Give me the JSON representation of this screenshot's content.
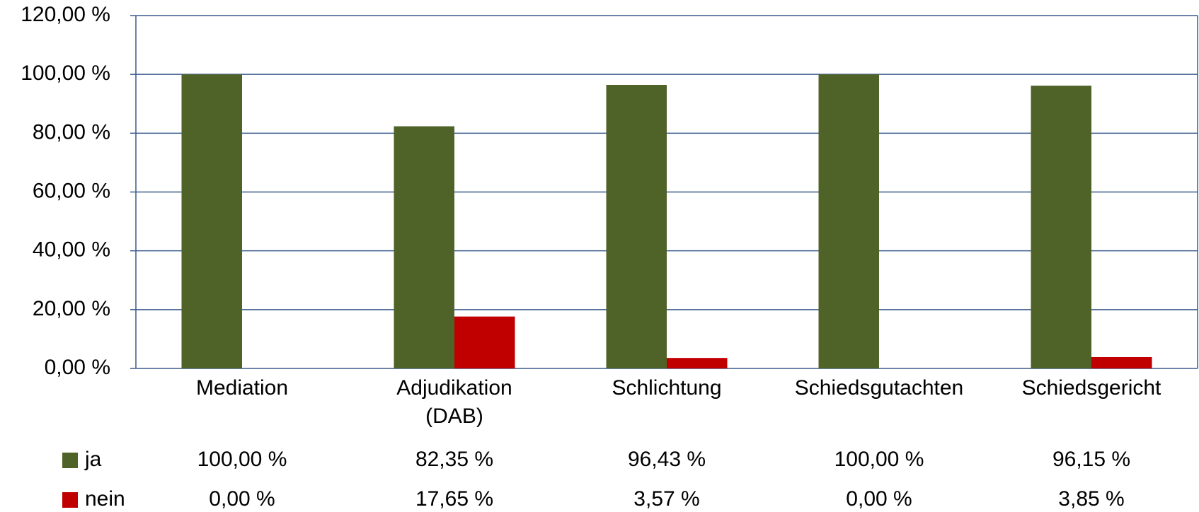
{
  "chart_data": {
    "type": "bar",
    "categories": [
      "Mediation",
      "Adjudikation\n(DAB)",
      "Schlichtung",
      "Schiedsgutachten",
      "Schiedsgericht"
    ],
    "series": [
      {
        "name": "ja",
        "color": "#4f6228",
        "values": [
          100,
          82.35,
          96.43,
          100,
          96.15
        ],
        "value_labels": [
          "100,00 %",
          "82,35 %",
          "96,43 %",
          "100,00 %",
          "96,15 %"
        ]
      },
      {
        "name": "nein",
        "color": "#c00000",
        "values": [
          0,
          17.65,
          3.57,
          0,
          3.85
        ],
        "value_labels": [
          "0,00 %",
          "17,65 %",
          "3,57 %",
          "0,00 %",
          "3,85 %"
        ]
      }
    ],
    "ylim": [
      0,
      120
    ],
    "yticks": [
      {
        "value": 0,
        "label": "0,00 %"
      },
      {
        "value": 20,
        "label": "20,00 %"
      },
      {
        "value": 40,
        "label": "40,00 %"
      },
      {
        "value": 60,
        "label": "60,00 %"
      },
      {
        "value": 80,
        "label": "80,00 %"
      },
      {
        "value": 100,
        "label": "100,00 %"
      },
      {
        "value": 120,
        "label": "120,00 %"
      }
    ],
    "grid": true
  }
}
